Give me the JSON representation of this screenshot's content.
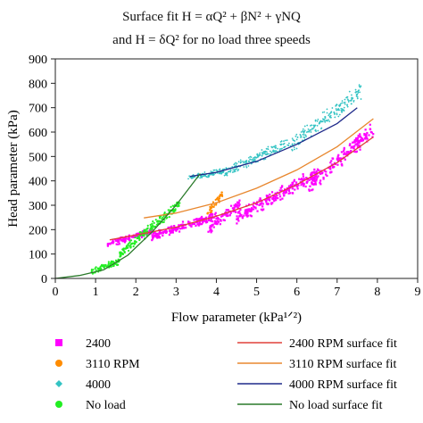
{
  "chart_data": {
    "type": "scatter",
    "title_lines": [
      "Surface fit H = αQ² + βN² + γNQ",
      "and H = δQ² for no load three speeds"
    ],
    "xlabel": "Flow parameter (kPa¹ᐟ²)",
    "ylabel": "Head parameter (kPa)",
    "xlim": [
      0,
      9
    ],
    "ylim": [
      0,
      900
    ],
    "x_ticks": [
      "0",
      "1",
      "2",
      "3",
      "4",
      "5",
      "6",
      "7",
      "8",
      "9"
    ],
    "y_ticks": [
      "0",
      "100",
      "200",
      "300",
      "400",
      "500",
      "600",
      "700",
      "800",
      "900"
    ],
    "grid": false,
    "legend_position": "bottom",
    "series": [
      {
        "name": "2400",
        "kind": "scatter",
        "marker": "square",
        "color": "#ff00ff",
        "clusters": [
          {
            "x": [
              1.3,
              2.4
            ],
            "y": [
              140,
              195
            ]
          },
          {
            "x": [
              2.4,
              4.0
            ],
            "y": [
              175,
              255
            ]
          },
          {
            "x": [
              3.8,
              4.6
            ],
            "y": [
              200,
              310
            ]
          },
          {
            "x": [
              4.5,
              6.5
            ],
            "y": [
              250,
              430
            ]
          },
          {
            "x": [
              6.3,
              7.9
            ],
            "y": [
              380,
              610
            ]
          }
        ]
      },
      {
        "name": "2400 RPM surface fit",
        "kind": "line",
        "color": "#e0403a",
        "points": [
          [
            1.35,
            158
          ],
          [
            2.0,
            178
          ],
          [
            3.0,
            210
          ],
          [
            4.0,
            255
          ],
          [
            5.0,
            310
          ],
          [
            6.0,
            385
          ],
          [
            7.0,
            475
          ],
          [
            7.9,
            580
          ]
        ]
      },
      {
        "name": "3110 RPM",
        "kind": "scatter",
        "marker": "circle",
        "color": "#ff8c00",
        "clusters": [
          {
            "x": [
              3.75,
              4.15
            ],
            "y": [
              260,
              345
            ]
          }
        ]
      },
      {
        "name": "3110 RPM surface fit",
        "kind": "line",
        "color": "#e8872e",
        "points": [
          [
            2.2,
            248
          ],
          [
            3.0,
            268
          ],
          [
            4.0,
            310
          ],
          [
            5.0,
            370
          ],
          [
            6.0,
            445
          ],
          [
            7.0,
            540
          ],
          [
            7.9,
            655
          ]
        ]
      },
      {
        "name": "4000",
        "kind": "scatter",
        "marker": "diamond",
        "color": "#33c3c3",
        "clusters": [
          {
            "x": [
              3.3,
              4.2
            ],
            "y": [
              410,
              440
            ]
          },
          {
            "x": [
              4.2,
              5.8
            ],
            "y": [
              430,
              560
            ]
          },
          {
            "x": [
              5.8,
              7.6
            ],
            "y": [
              540,
              770
            ]
          }
        ]
      },
      {
        "name": "4000 RPM surface fit",
        "kind": "line",
        "color": "#1f2a8a",
        "points": [
          [
            3.35,
            418
          ],
          [
            4.0,
            435
          ],
          [
            5.0,
            480
          ],
          [
            6.0,
            550
          ],
          [
            7.0,
            635
          ],
          [
            7.5,
            700
          ]
        ]
      },
      {
        "name": "No load",
        "kind": "scatter",
        "marker": "circle",
        "color": "#22ee22",
        "clusters": [
          {
            "x": [
              0.9,
              1.6
            ],
            "y": [
              30,
              70
            ]
          },
          {
            "x": [
              1.6,
              2.3
            ],
            "y": [
              100,
              200
            ]
          },
          {
            "x": [
              2.2,
              3.1
            ],
            "y": [
              180,
              310
            ]
          }
        ]
      },
      {
        "name": "No load surface fit",
        "kind": "line",
        "color": "#2a7a2a",
        "points": [
          [
            0.0,
            0
          ],
          [
            0.6,
            12
          ],
          [
            1.2,
            35
          ],
          [
            1.8,
            95
          ],
          [
            2.4,
            190
          ],
          [
            3.0,
            300
          ],
          [
            3.6,
            430
          ]
        ]
      }
    ]
  }
}
